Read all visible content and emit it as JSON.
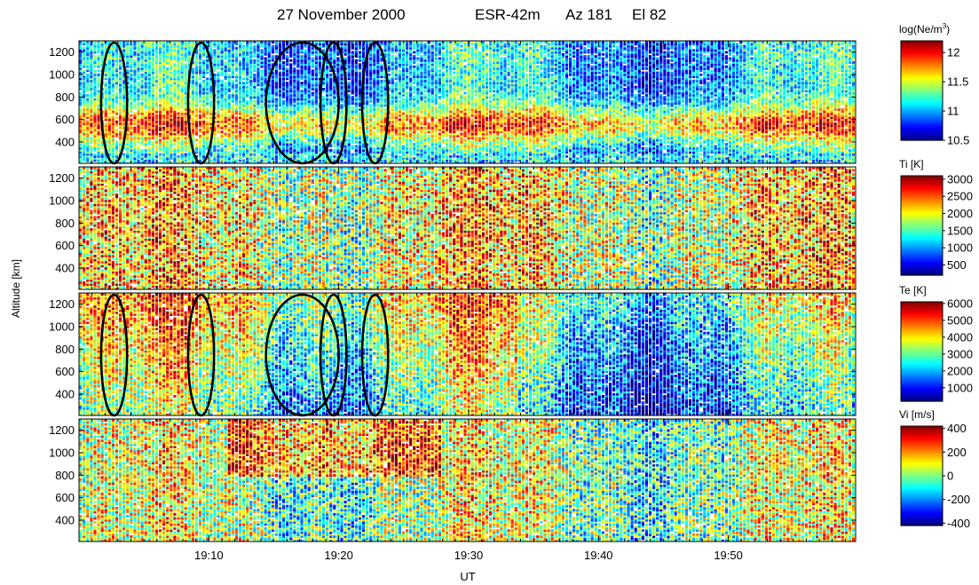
{
  "title": {
    "date": "27 November 2000",
    "radar": "ESR-42m",
    "azimuth": "Az 181",
    "elevation": "El 82"
  },
  "chart_data": {
    "type": "heatmap",
    "x_range_ut_minutes": [
      1140,
      1199.8
    ],
    "x_ticks": [
      {
        "value": 1150,
        "label": "19:10"
      },
      {
        "value": 1160,
        "label": "19:20"
      },
      {
        "value": 1170,
        "label": "19:30"
      },
      {
        "value": 1180,
        "label": "19:40"
      },
      {
        "value": 1190,
        "label": "19:50"
      }
    ],
    "xlabel": "UT",
    "ylabel": "Altitude  [km]",
    "ylim": [
      210,
      1300
    ],
    "y_ticks": [
      {
        "value": 400,
        "label": "400"
      },
      {
        "value": 600,
        "label": "600"
      },
      {
        "value": 800,
        "label": "800"
      },
      {
        "value": 1000,
        "label": "1000"
      },
      {
        "value": 1200,
        "label": "1200"
      }
    ],
    "panels": [
      {
        "name": "log(Ne/m3)",
        "colorbar_title_main": "log(Ne/m",
        "colorbar_title_sup": "3",
        "colorbar_title_end": ")",
        "range": [
          10.5,
          12.2
        ],
        "colorbar_ticks": [
          {
            "value": 12,
            "label": "12"
          },
          {
            "value": 11.5,
            "label": "11.5"
          },
          {
            "value": 11,
            "label": "11"
          },
          {
            "value": 10.5,
            "label": "10.5"
          }
        ],
        "profile": {
          "type": "layer",
          "peak_alt": 560,
          "width": 160,
          "base": 0.3,
          "amp": 0.45
        }
      },
      {
        "name": "Ti [K]",
        "colorbar_title_main": "Ti [K]",
        "colorbar_title_sup": "",
        "colorbar_title_end": "",
        "range": [
          200,
          3100
        ],
        "colorbar_ticks": [
          {
            "value": 3000,
            "label": "3000"
          },
          {
            "value": 2500,
            "label": "2500"
          },
          {
            "value": 2000,
            "label": "2000"
          },
          {
            "value": 1500,
            "label": "1500"
          },
          {
            "value": 1000,
            "label": "1000"
          },
          {
            "value": 500,
            "label": "500"
          }
        ],
        "profile": {
          "type": "noisy",
          "base": 0.62,
          "amp": 0.1
        }
      },
      {
        "name": "Te [K]",
        "colorbar_title_main": "Te [K]",
        "colorbar_title_sup": "",
        "colorbar_title_end": "",
        "range": [
          200,
          6100
        ],
        "colorbar_ticks": [
          {
            "value": 6000,
            "label": "6000"
          },
          {
            "value": 5000,
            "label": "5000"
          },
          {
            "value": 4000,
            "label": "4000"
          },
          {
            "value": 3000,
            "label": "3000"
          },
          {
            "value": 2000,
            "label": "2000"
          },
          {
            "value": 1000,
            "label": "1000"
          }
        ],
        "profile": {
          "type": "increasing",
          "base": 0.42,
          "amp": 0.25
        }
      },
      {
        "name": "Vi [m/s]",
        "colorbar_title_main": "Vi [m/s]",
        "colorbar_title_sup": "",
        "colorbar_title_end": "",
        "range": [
          -420,
          420
        ],
        "colorbar_ticks": [
          {
            "value": 400,
            "label": "400"
          },
          {
            "value": 200,
            "label": "200"
          },
          {
            "value": 0,
            "label": "0"
          },
          {
            "value": -200,
            "label": "-200"
          },
          {
            "value": -400,
            "label": "-400"
          }
        ],
        "profile": {
          "type": "velocity",
          "base": 0.52,
          "amp": 0.2
        }
      }
    ],
    "marked_times_ut_minutes": [
      1142.7,
      1149.4,
      1157.2,
      1159.6,
      1162.8
    ],
    "marked_intervals_ut_minutes": [
      [
        1141.7,
        1143.7
      ],
      [
        1148.4,
        1150.4
      ],
      [
        1154.4,
        1160.0
      ],
      [
        1158.6,
        1160.6
      ],
      [
        1161.8,
        1163.8
      ]
    ],
    "marked_panels": [
      0,
      2
    ]
  }
}
